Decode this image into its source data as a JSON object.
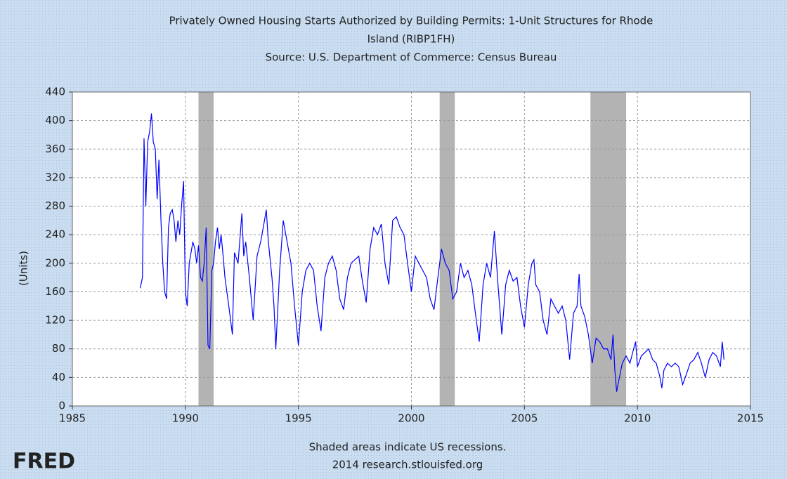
{
  "chart_data": {
    "type": "line",
    "title": [
      "Privately Owned Housing Starts Authorized by Building Permits: 1-Unit Structures for Rhode",
      "Island (RIBP1FH)"
    ],
    "subtitle": "Source: U.S. Department of Commerce: Census Bureau",
    "y_label": "(Units)",
    "notes": [
      "Shaded areas indicate US recessions.",
      "2014 research.stlouisfed.org"
    ],
    "logo": "FRED",
    "xlim": [
      1985,
      2015
    ],
    "xticks": [
      1985,
      1990,
      1995,
      2000,
      2005,
      2010,
      2015
    ],
    "ylim": [
      0,
      440
    ],
    "yticks": [
      0,
      40,
      80,
      120,
      160,
      200,
      240,
      280,
      320,
      360,
      400,
      440
    ],
    "grid": true,
    "recessions": [
      {
        "start": 1990.58,
        "end": 1991.25
      },
      {
        "start": 2001.25,
        "end": 2001.92
      },
      {
        "start": 2007.92,
        "end": 2009.5
      }
    ],
    "x": [
      1988.0,
      1988.1,
      1988.17,
      1988.25,
      1988.33,
      1988.42,
      1988.5,
      1988.58,
      1988.67,
      1988.75,
      1988.83,
      1988.92,
      1989.0,
      1989.08,
      1989.17,
      1989.25,
      1989.33,
      1989.42,
      1989.5,
      1989.58,
      1989.67,
      1989.75,
      1989.83,
      1989.92,
      1990.0,
      1990.08,
      1990.17,
      1990.25,
      1990.33,
      1990.42,
      1990.5,
      1990.58,
      1990.67,
      1990.75,
      1990.83,
      1990.92,
      1991.0,
      1991.08,
      1991.17,
      1991.25,
      1991.33,
      1991.42,
      1991.5,
      1991.58,
      1991.67,
      1991.75,
      1991.92,
      1992.0,
      1992.08,
      1992.17,
      1992.33,
      1992.5,
      1992.58,
      1992.67,
      1992.83,
      1993.0,
      1993.17,
      1993.33,
      1993.5,
      1993.58,
      1993.67,
      1993.83,
      1993.92,
      1994.0,
      1994.17,
      1994.33,
      1994.5,
      1994.67,
      1994.83,
      1995.0,
      1995.17,
      1995.33,
      1995.5,
      1995.67,
      1995.83,
      1996.0,
      1996.17,
      1996.33,
      1996.5,
      1996.67,
      1996.83,
      1997.0,
      1997.17,
      1997.33,
      1997.5,
      1997.67,
      1997.83,
      1998.0,
      1998.17,
      1998.33,
      1998.5,
      1998.67,
      1998.83,
      1999.0,
      1999.17,
      1999.33,
      1999.5,
      1999.67,
      1999.83,
      2000.0,
      2000.17,
      2000.33,
      2000.5,
      2000.67,
      2000.83,
      2001.0,
      2001.17,
      2001.33,
      2001.5,
      2001.67,
      2001.83,
      2002.0,
      2002.17,
      2002.33,
      2002.5,
      2002.67,
      2002.83,
      2003.0,
      2003.17,
      2003.33,
      2003.5,
      2003.67,
      2003.83,
      2004.0,
      2004.17,
      2004.33,
      2004.5,
      2004.67,
      2004.83,
      2005.0,
      2005.17,
      2005.33,
      2005.42,
      2005.5,
      2005.67,
      2005.83,
      2006.0,
      2006.17,
      2006.33,
      2006.5,
      2006.67,
      2006.83,
      2007.0,
      2007.17,
      2007.33,
      2007.42,
      2007.5,
      2007.67,
      2007.83,
      2008.0,
      2008.17,
      2008.33,
      2008.5,
      2008.67,
      2008.83,
      2008.92,
      2009.0,
      2009.08,
      2009.17,
      2009.33,
      2009.5,
      2009.67,
      2009.83,
      2009.92,
      2010.0,
      2010.17,
      2010.33,
      2010.5,
      2010.67,
      2010.83,
      2011.0,
      2011.08,
      2011.17,
      2011.33,
      2011.5,
      2011.67,
      2011.83,
      2012.0,
      2012.17,
      2012.33,
      2012.5,
      2012.67,
      2012.83,
      2013.0,
      2013.17,
      2013.33,
      2013.5,
      2013.67,
      2013.75,
      2013.83
    ],
    "series": [
      {
        "color": "#0000ff",
        "values": [
          165,
          180,
          375,
          280,
          370,
          385,
          410,
          370,
          360,
          290,
          345,
          260,
          200,
          160,
          150,
          250,
          270,
          275,
          260,
          230,
          260,
          240,
          280,
          315,
          160,
          140,
          200,
          215,
          230,
          220,
          200,
          225,
          180,
          175,
          200,
          250,
          85,
          80,
          190,
          200,
          230,
          250,
          220,
          240,
          210,
          180,
          140,
          120,
          100,
          215,
          200,
          270,
          210,
          230,
          180,
          120,
          210,
          230,
          260,
          275,
          230,
          180,
          140,
          80,
          190,
          260,
          230,
          200,
          140,
          85,
          160,
          190,
          200,
          190,
          140,
          105,
          180,
          200,
          210,
          190,
          150,
          135,
          180,
          200,
          205,
          210,
          175,
          145,
          220,
          250,
          240,
          255,
          200,
          170,
          260,
          265,
          250,
          240,
          200,
          160,
          210,
          200,
          190,
          180,
          150,
          135,
          180,
          220,
          200,
          190,
          150,
          160,
          200,
          180,
          190,
          170,
          130,
          90,
          170,
          200,
          180,
          245,
          170,
          100,
          170,
          190,
          175,
          180,
          140,
          110,
          170,
          200,
          205,
          170,
          160,
          120,
          100,
          150,
          140,
          130,
          140,
          120,
          65,
          130,
          140,
          185,
          140,
          125,
          100,
          60,
          95,
          90,
          80,
          80,
          65,
          100,
          50,
          20,
          35,
          60,
          70,
          60,
          80,
          90,
          55,
          70,
          75,
          80,
          65,
          60,
          40,
          25,
          50,
          60,
          55,
          60,
          55,
          30,
          45,
          60,
          65,
          75,
          60,
          40,
          65,
          75,
          70,
          55,
          90,
          65
        ]
      }
    ]
  }
}
